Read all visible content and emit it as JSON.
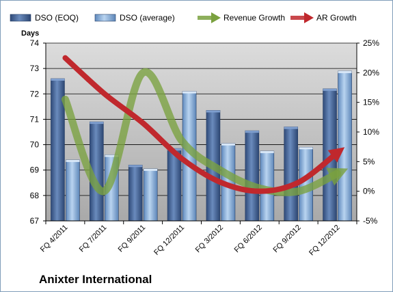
{
  "chart_data": {
    "type": "bar",
    "title": "Anixter International",
    "ylabel_left": "Days",
    "categories": [
      "FQ 4/2011",
      "FQ 7/2011",
      "FQ 9/2011",
      "FQ 12/2011",
      "FQ 3/2012",
      "FQ 6/2012",
      "FQ 9/2012",
      "FQ 12/2012"
    ],
    "bar_series": [
      {
        "name": "DSO (EOQ)",
        "values": [
          72.6,
          70.9,
          69.2,
          69.85,
          71.35,
          70.55,
          70.7,
          72.2
        ],
        "color": "#4a6a9c"
      },
      {
        "name": "DSO (average)",
        "values": [
          69.4,
          69.6,
          69.05,
          72.1,
          70.05,
          69.75,
          69.9,
          72.9
        ],
        "color": "#8fb4dc"
      }
    ],
    "line_series": [
      {
        "name": "Revenue Growth",
        "values": [
          15.5,
          0.0,
          20.0,
          8.5,
          3.5,
          0.5,
          0.0,
          3.0
        ],
        "color": "#7aa13f"
      },
      {
        "name": "AR Growth",
        "values": [
          22.5,
          16.5,
          11.5,
          5.5,
          1.5,
          0.0,
          1.5,
          6.5
        ],
        "color": "#c0282d"
      }
    ],
    "y_left": {
      "min": 67,
      "max": 74,
      "ticks": [
        "67",
        "68",
        "69",
        "70",
        "71",
        "72",
        "73",
        "74"
      ]
    },
    "y_right": {
      "min": -5,
      "max": 25,
      "ticks": [
        "-5%",
        "0%",
        "5%",
        "10%",
        "15%",
        "20%",
        "25%"
      ]
    },
    "grid": true,
    "legend_position": "top"
  }
}
